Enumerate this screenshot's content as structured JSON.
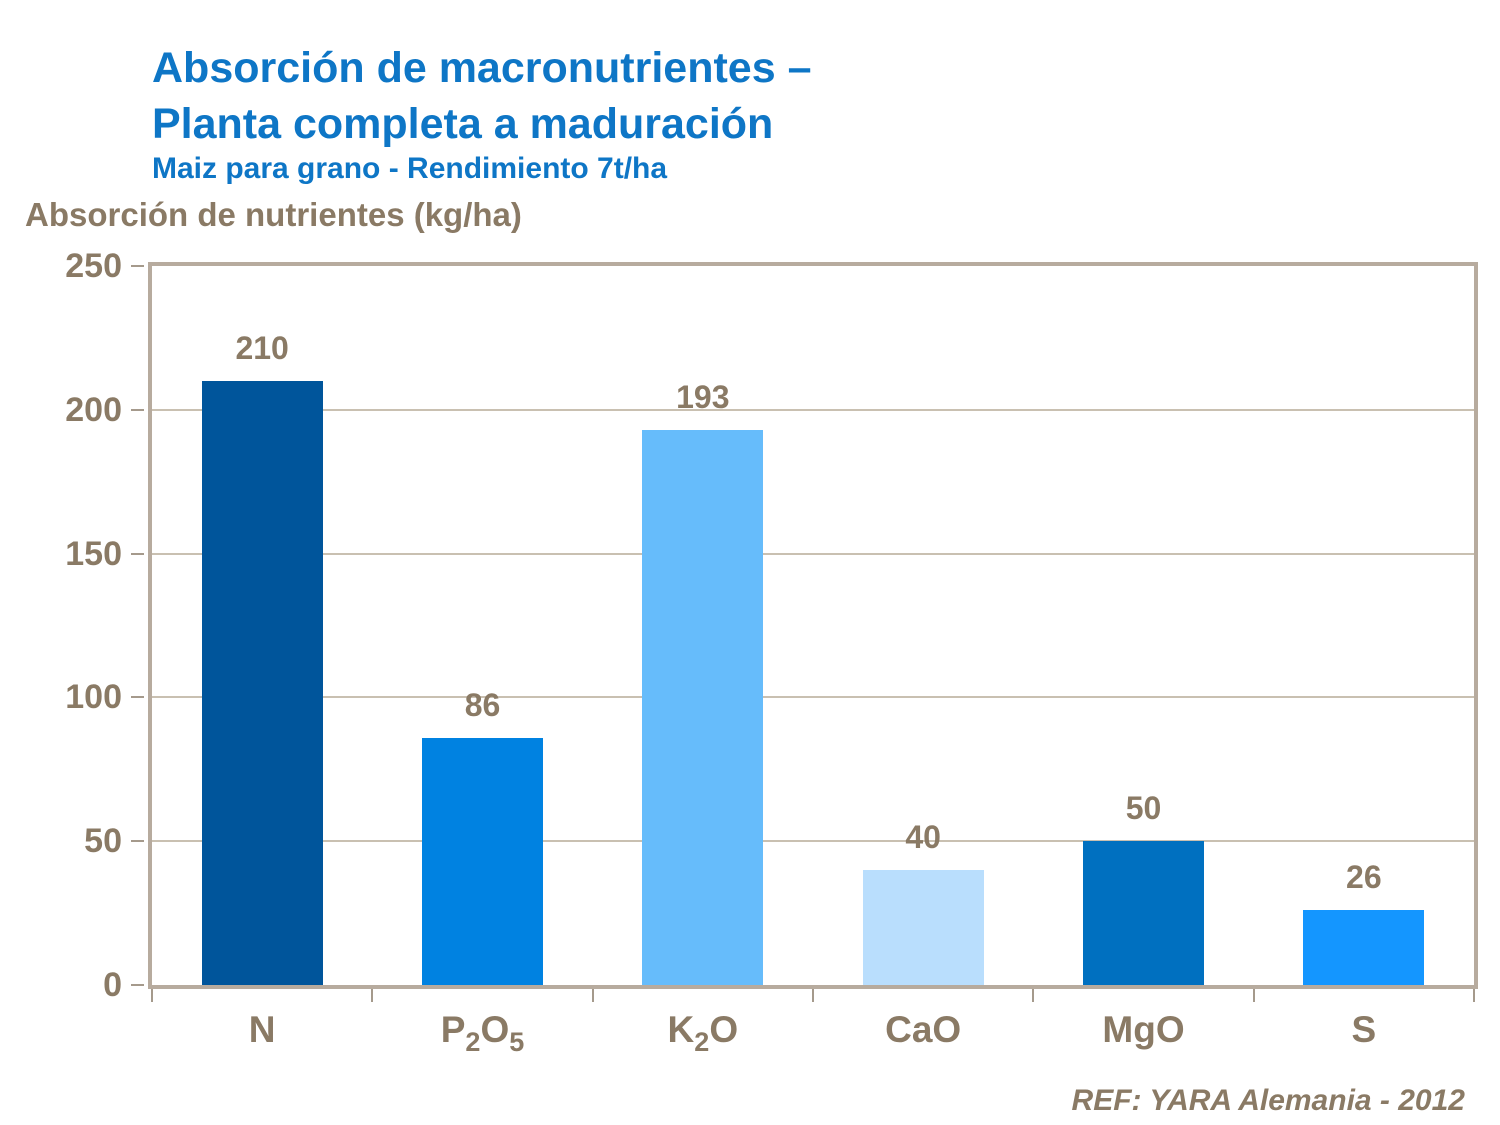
{
  "header": {
    "title_line1": "Absorción de macronutrientes –",
    "title_line2": "Planta completa a maduración",
    "subtitle": "Maiz para grano - Rendimiento 7t/ha"
  },
  "colors": {
    "title_blue": "#0e76c6",
    "text_brown": "#8a7a65",
    "plot_border": "#b7ab9e",
    "gridline": "#c9c0b1"
  },
  "chart_data": {
    "type": "bar",
    "title": "Absorción de macronutrientes – Planta completa a maduración",
    "subtitle": "Maiz para grano - Rendimiento 7t/ha",
    "ylabel": "Absorción de nutrientes (kg/ha)",
    "xlabel": "",
    "categories": [
      "N",
      "P₂O₅",
      "K₂O",
      "CaO",
      "MgO",
      "S"
    ],
    "category_parts": [
      {
        "key": "N",
        "parts": [
          "N"
        ]
      },
      {
        "key": "P2O5",
        "parts": [
          "P",
          {
            "sub": "2"
          },
          "O",
          {
            "sub": "5"
          }
        ]
      },
      {
        "key": "K2O",
        "parts": [
          "K",
          {
            "sub": "2"
          },
          "O"
        ]
      },
      {
        "key": "CaO",
        "parts": [
          "CaO"
        ]
      },
      {
        "key": "MgO",
        "parts": [
          "MgO"
        ]
      },
      {
        "key": "S",
        "parts": [
          "S"
        ]
      }
    ],
    "values": [
      210,
      86,
      193,
      40,
      50,
      26
    ],
    "bar_colors": [
      "#00559b",
      "#0082e1",
      "#66bcfb",
      "#b9defd",
      "#0070c0",
      "#1496ff"
    ],
    "ylim": [
      0,
      250
    ],
    "yticks": [
      0,
      50,
      100,
      150,
      200,
      250
    ],
    "grid": true,
    "legend_position": "none",
    "source": "REF: YARA Alemania - 2012"
  }
}
